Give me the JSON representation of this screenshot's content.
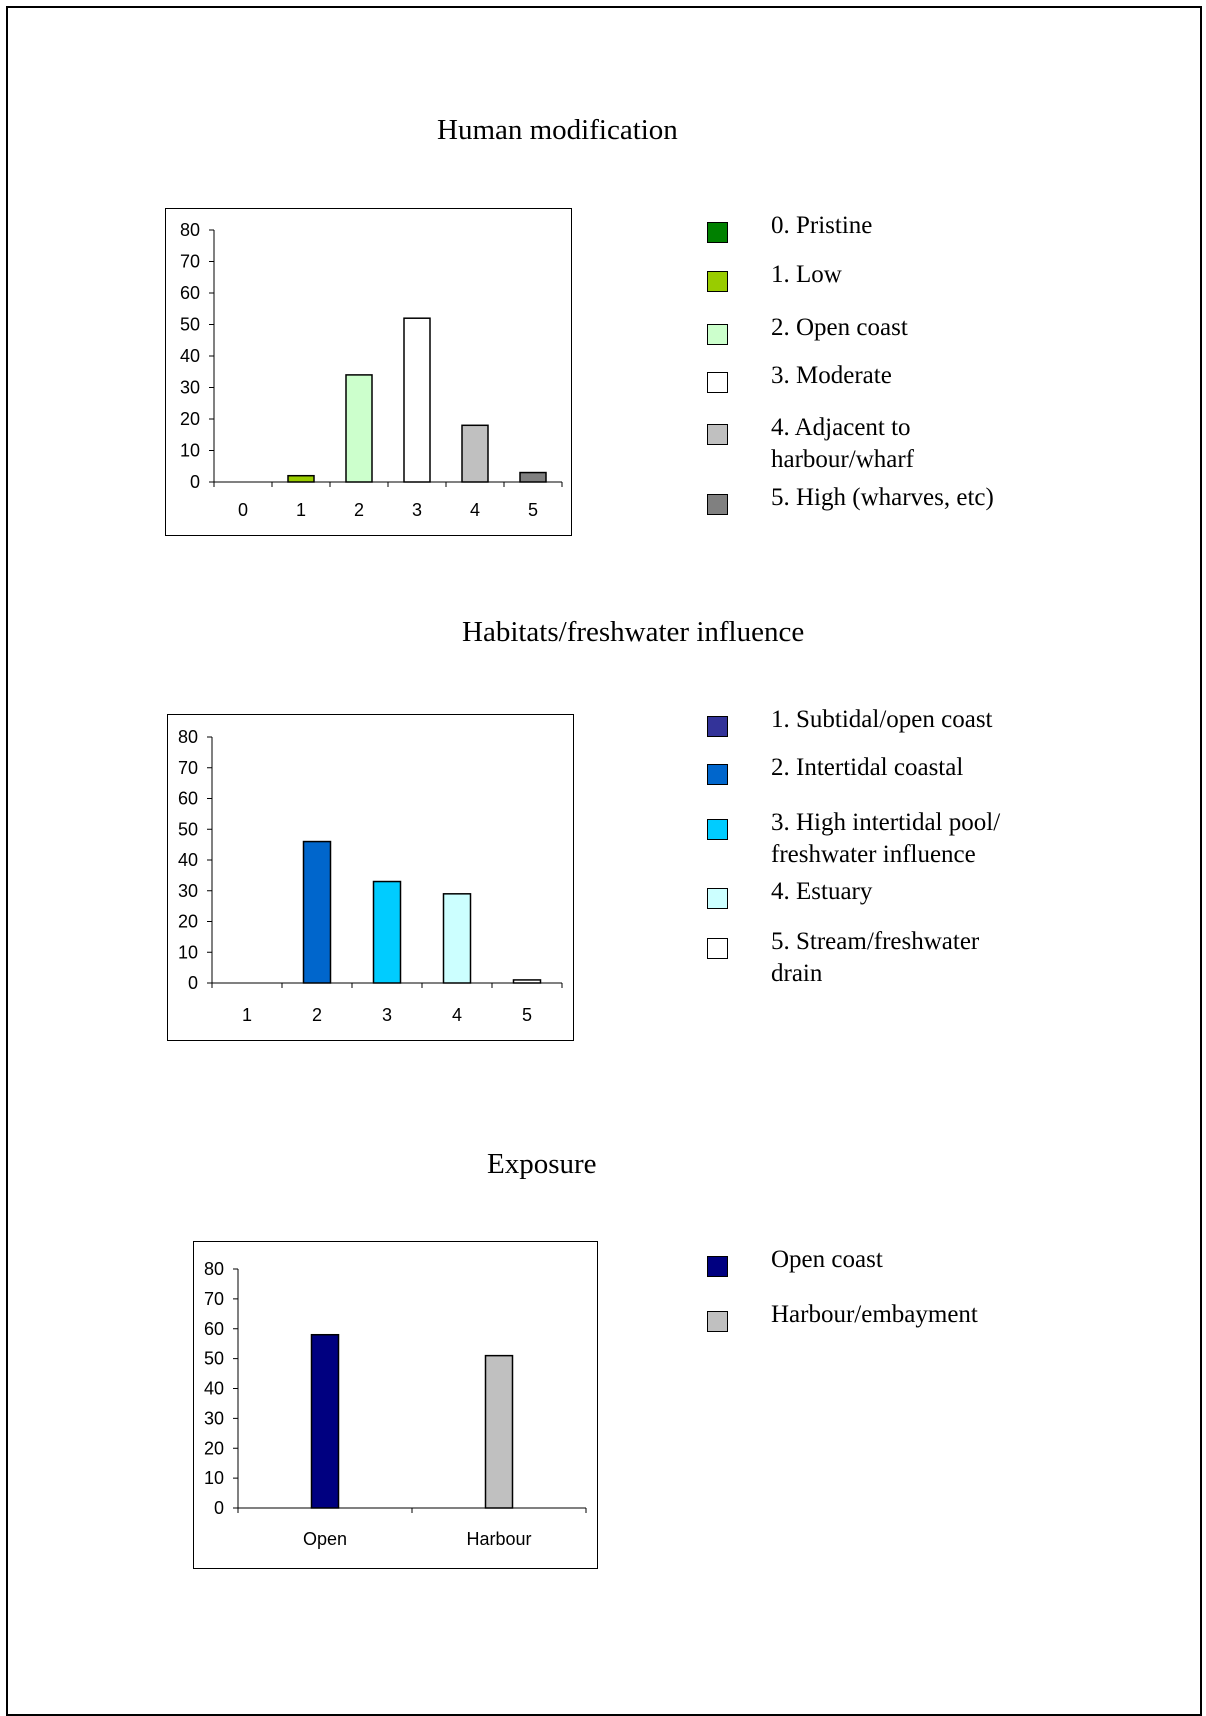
{
  "chart_data": [
    {
      "type": "bar",
      "title": "Human modification",
      "categories": [
        "0",
        "1",
        "2",
        "3",
        "4",
        "5"
      ],
      "values": [
        0,
        2,
        34,
        52,
        18,
        3
      ],
      "colors": [
        "#008000",
        "#99cc00",
        "#ccffcc",
        "#ffffff",
        "#c0c0c0",
        "#808080"
      ],
      "ylim": [
        0,
        80
      ],
      "yticks": [
        0,
        10,
        20,
        30,
        40,
        50,
        60,
        70,
        80
      ],
      "legend": [
        {
          "label": "0. Pristine",
          "color": "#008000"
        },
        {
          "label": "1. Low",
          "color": "#99cc00"
        },
        {
          "label": "2. Open coast",
          "color": "#ccffcc"
        },
        {
          "label": "3. Moderate",
          "color": "#ffffff"
        },
        {
          "label": "4. Adjacent to\nharbour/wharf",
          "color": "#c0c0c0"
        },
        {
          "label": "5. High (wharves, etc)",
          "color": "#808080"
        }
      ]
    },
    {
      "type": "bar",
      "title": "Habitats/freshwater influence",
      "categories": [
        "1",
        "2",
        "3",
        "4",
        "5"
      ],
      "values": [
        0,
        46,
        33,
        29,
        1
      ],
      "colors": [
        "#333399",
        "#0066cc",
        "#00ccff",
        "#ccffff",
        "#ffffff"
      ],
      "ylim": [
        0,
        80
      ],
      "yticks": [
        0,
        10,
        20,
        30,
        40,
        50,
        60,
        70,
        80
      ],
      "legend": [
        {
          "label": "1. Subtidal/open coast",
          "color": "#333399"
        },
        {
          "label": "2. Intertidal coastal",
          "color": "#0066cc"
        },
        {
          "label": "3. High intertidal pool/\nfreshwater influence",
          "color": "#00ccff"
        },
        {
          "label": "4. Estuary",
          "color": "#ccffff"
        },
        {
          "label": "5. Stream/freshwater\ndrain",
          "color": "#ffffff"
        }
      ]
    },
    {
      "type": "bar",
      "title": "Exposure",
      "categories": [
        "Open",
        "Harbour"
      ],
      "values": [
        58,
        51
      ],
      "colors": [
        "#000080",
        "#c0c0c0"
      ],
      "ylim": [
        0,
        80
      ],
      "yticks": [
        0,
        10,
        20,
        30,
        40,
        50,
        60,
        70,
        80
      ],
      "legend": [
        {
          "label": "Open coast",
          "color": "#000080"
        },
        {
          "label": "Harbour/embayment",
          "color": "#c0c0c0"
        }
      ]
    }
  ]
}
